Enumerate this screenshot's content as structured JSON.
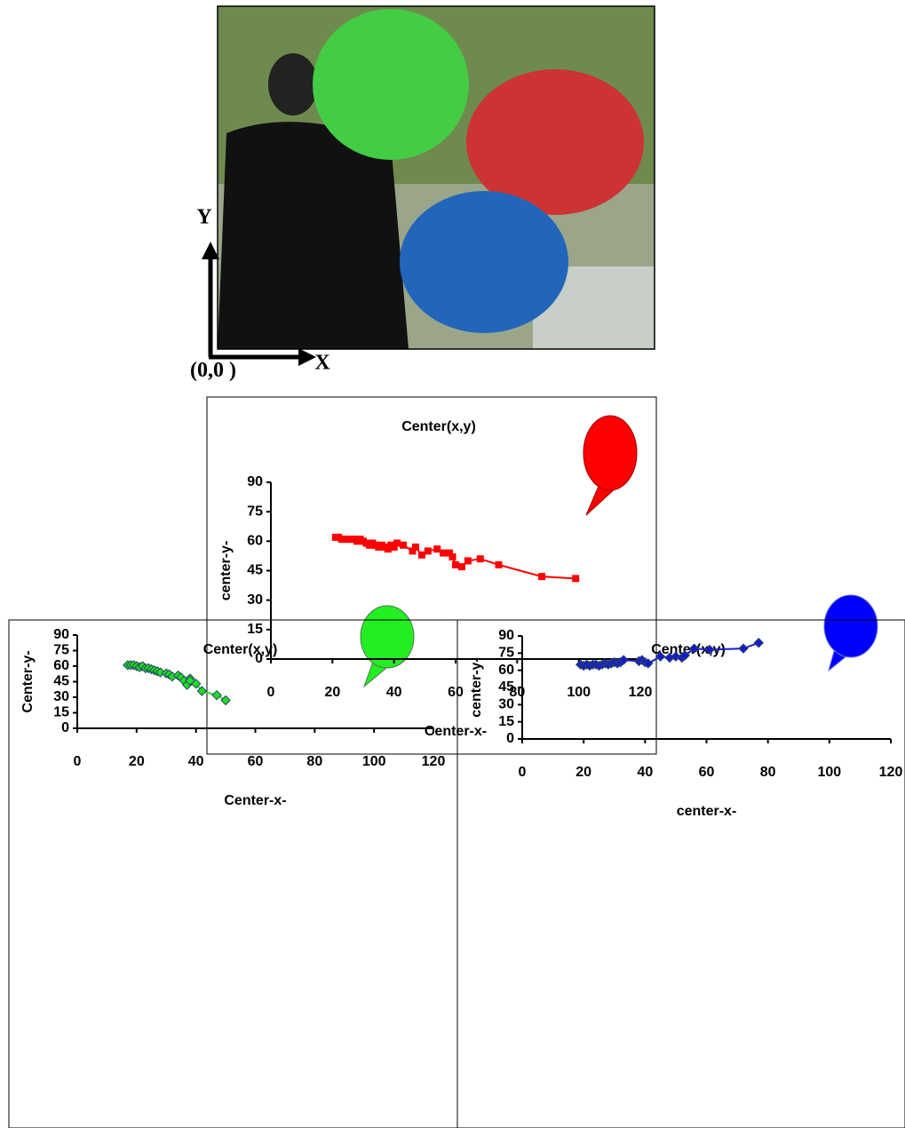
{
  "figure": {
    "y_axis_label": "Y",
    "x_axis_label": "X",
    "origin_label": "(0,0 )"
  },
  "chart_data": [
    {
      "type": "line",
      "title": "Center(x,y)",
      "x_label": "Center-x-",
      "y_label": "center-y-",
      "color": "#ff0000",
      "marker": "square",
      "x": [
        21,
        22,
        23,
        24,
        25,
        26,
        27,
        28,
        29,
        30,
        31,
        32,
        33,
        34,
        35,
        36,
        37,
        38,
        39,
        40,
        41,
        43,
        46,
        47,
        49,
        51,
        54,
        56,
        58,
        59,
        60,
        62,
        64,
        68,
        74,
        88,
        99
      ],
      "values": [
        62,
        62,
        61,
        61,
        61,
        61,
        61,
        60,
        61,
        60,
        59,
        58,
        59,
        58,
        57,
        58,
        57,
        56,
        58,
        57,
        59,
        58,
        55,
        57,
        53,
        55,
        56,
        54,
        54,
        52,
        48,
        47,
        50,
        51,
        48,
        42,
        41
      ],
      "xlim": [
        0,
        120
      ],
      "xticks": [
        0,
        20,
        40,
        60,
        80,
        100,
        120
      ],
      "ylim": [
        0,
        90
      ],
      "yticks": [
        0,
        15,
        30,
        45,
        60,
        75,
        90
      ]
    },
    {
      "type": "line",
      "title": "Center(x,y)",
      "x_label": "Center-x-",
      "y_label": "Center-y-",
      "color": "#22dd22",
      "marker": "diamond",
      "x": [
        17,
        18,
        19,
        20,
        21,
        22,
        23,
        24,
        25,
        26,
        27,
        28,
        30,
        31,
        32,
        34,
        35,
        36,
        37,
        38,
        38,
        40,
        42,
        47,
        50
      ],
      "values": [
        61,
        61,
        61,
        60,
        59,
        60,
        58,
        58,
        57,
        56,
        55,
        54,
        53,
        52,
        50,
        51,
        49,
        46,
        42,
        48,
        46,
        43,
        36,
        32,
        27
      ],
      "xlim": [
        0,
        120
      ],
      "xticks": [
        0,
        20,
        40,
        60,
        80,
        100,
        120
      ],
      "ylim": [
        0,
        90
      ],
      "yticks": [
        0,
        15,
        30,
        45,
        60,
        75,
        90
      ]
    },
    {
      "type": "line",
      "title": "Center(x,y)",
      "x_label": "center-x-",
      "y_label": "center-y-",
      "color": "#1a1acc",
      "marker": "diamond",
      "x": [
        19,
        20,
        21,
        22,
        23,
        24,
        25,
        26,
        27,
        28,
        29,
        30,
        31,
        32,
        33,
        38,
        39,
        40,
        41,
        45,
        48,
        50,
        52,
        53,
        56,
        61,
        72,
        77
      ],
      "values": [
        65,
        64,
        65,
        64,
        65,
        65,
        64,
        65,
        66,
        65,
        66,
        67,
        66,
        67,
        69,
        68,
        69,
        67,
        66,
        72,
        71,
        72,
        71,
        73,
        79,
        78,
        79,
        84
      ],
      "xlim": [
        0,
        120
      ],
      "xticks": [
        0,
        20,
        40,
        60,
        80,
        100,
        120
      ],
      "ylim": [
        0,
        90
      ],
      "yticks": [
        0,
        15,
        30,
        45,
        60,
        75,
        90
      ]
    }
  ]
}
